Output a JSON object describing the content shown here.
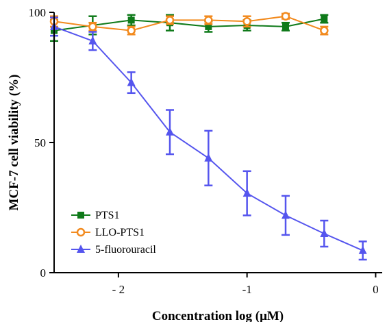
{
  "chart_data": {
    "type": "line",
    "xlabel": "Concentration log (μM)",
    "ylabel": "MCF-7 cell viability (%)",
    "xlim": [
      -2.5,
      0
    ],
    "ylim": [
      0,
      100
    ],
    "x_ticks": [
      {
        "value": -2,
        "label": "- 2"
      },
      {
        "value": -1,
        "label": "-1"
      },
      {
        "value": 0,
        "label": "0"
      }
    ],
    "y_ticks": [
      {
        "value": 0,
        "label": "0"
      },
      {
        "value": 50,
        "label": "50"
      },
      {
        "value": 100,
        "label": "100"
      }
    ],
    "grid": false,
    "legend_position": "bottom-left",
    "series": [
      {
        "name": "PTS1",
        "color": "#0f7a1a",
        "marker": "square",
        "x": [
          -2.5,
          -2.2,
          -1.9,
          -1.6,
          -1.3,
          -1.0,
          -0.7,
          -0.4
        ],
        "y": [
          93,
          95,
          97,
          96,
          94.5,
          95,
          94.5,
          97.5
        ],
        "err": [
          4,
          3.5,
          2,
          3,
          2,
          2,
          1.5,
          1.5
        ]
      },
      {
        "name": "LLO-PTS1",
        "color": "#f28a1e",
        "marker": "circle",
        "x": [
          -2.5,
          -2.2,
          -1.9,
          -1.6,
          -1.3,
          -1.0,
          -0.7,
          -0.4
        ],
        "y": [
          96.5,
          94.5,
          93,
          97,
          97,
          96.5,
          98.5,
          93
        ],
        "err": [
          2,
          1.5,
          1.5,
          1.5,
          1.5,
          2,
          1,
          1.5
        ]
      },
      {
        "name": "5-fluorouracil",
        "color": "#5555ee",
        "marker": "triangle",
        "x": [
          -2.5,
          -2.2,
          -1.9,
          -1.6,
          -1.3,
          -1.0,
          -0.7,
          -0.4,
          -0.1
        ],
        "y": [
          94.5,
          89,
          73,
          54,
          44,
          30.5,
          22,
          15,
          8.5
        ],
        "err": [
          3.5,
          3.5,
          4,
          8.5,
          10.5,
          8.5,
          7.5,
          5,
          3.5
        ]
      }
    ]
  }
}
